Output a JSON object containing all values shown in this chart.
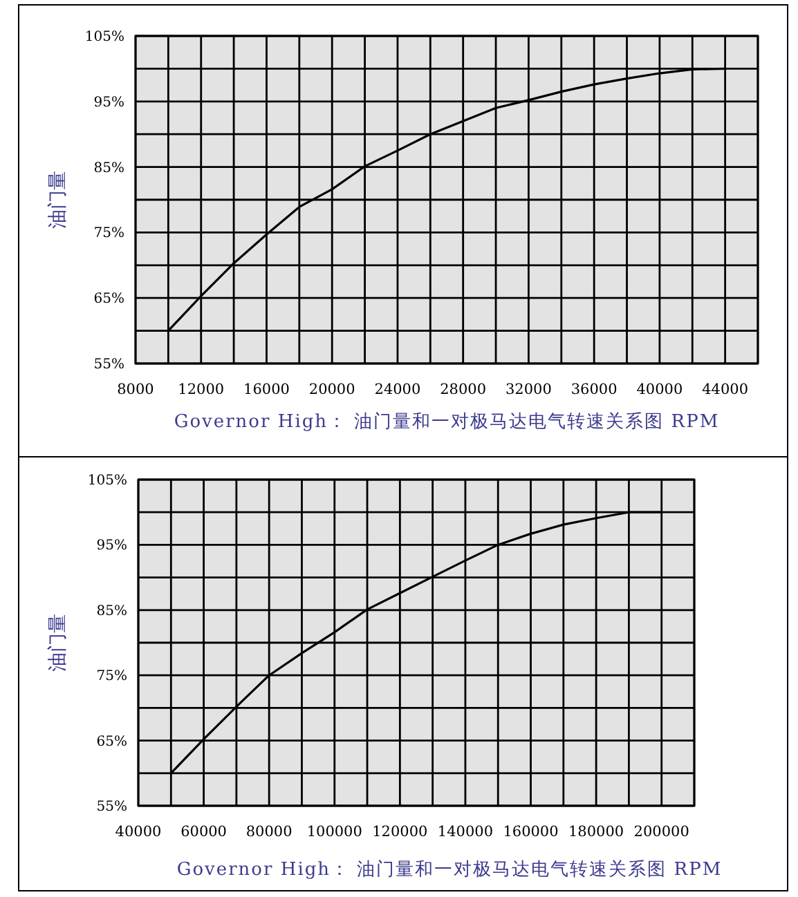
{
  "chart_data": [
    {
      "type": "line",
      "xlabel": "Governor High： 油门量和一对极马达电气转速关系图 RPM",
      "ylabel": "油门量",
      "grid": true,
      "marker": "none",
      "line_style": "solid",
      "xlim": [
        8000,
        46000
      ],
      "ylim": [
        55,
        105
      ],
      "xticks": [
        8000,
        {
          "value": 10000,
          "label": null
        },
        12000,
        {
          "value": 14000,
          "label": null
        },
        16000,
        {
          "value": 18000,
          "label": null
        },
        20000,
        {
          "value": 22000,
          "label": null
        },
        24000,
        {
          "value": 26000,
          "label": null
        },
        28000,
        {
          "value": 30000,
          "label": null
        },
        32000,
        {
          "value": 34000,
          "label": null
        },
        36000,
        {
          "value": 38000,
          "label": null
        },
        40000,
        {
          "value": 42000,
          "label": null
        },
        44000,
        {
          "value": 46000,
          "label": null
        }
      ],
      "yticks": [
        {
          "value": 55,
          "label": "55%"
        },
        {
          "value": 60,
          "label": null
        },
        {
          "value": 65,
          "label": "65%"
        },
        {
          "value": 70,
          "label": null
        },
        {
          "value": 75,
          "label": "75%"
        },
        {
          "value": 80,
          "label": null
        },
        {
          "value": 85,
          "label": "85%"
        },
        {
          "value": 90,
          "label": null
        },
        {
          "value": 95,
          "label": "95%"
        },
        {
          "value": 100,
          "label": null
        },
        {
          "value": 105,
          "label": "105%"
        }
      ],
      "series": [
        {
          "color": "#000000",
          "x": [
            10000,
            12000,
            14000,
            16000,
            18000,
            20000,
            22000,
            24000,
            26000,
            28000,
            30000,
            32000,
            34000,
            36000,
            38000,
            40000,
            42000,
            44000
          ],
          "values": [
            60,
            65.3,
            70.3,
            74.7,
            78.9,
            81.6,
            85.1,
            87.5,
            90,
            92,
            94,
            95.2,
            96.5,
            97.6,
            98.5,
            99.3,
            99.9,
            100
          ]
        }
      ]
    },
    {
      "type": "line",
      "xlabel": "Governor High： 油门量和一对极马达电气转速关系图 RPM",
      "ylabel": "油门量",
      "grid": true,
      "marker": "none",
      "line_style": "solid",
      "xlim": [
        40000,
        210000
      ],
      "ylim": [
        55,
        105
      ],
      "xticks": [
        40000,
        {
          "value": 50000,
          "label": null
        },
        60000,
        {
          "value": 70000,
          "label": null
        },
        80000,
        {
          "value": 90000,
          "label": null
        },
        100000,
        {
          "value": 110000,
          "label": null
        },
        120000,
        {
          "value": 130000,
          "label": null
        },
        140000,
        {
          "value": 150000,
          "label": null
        },
        160000,
        {
          "value": 170000,
          "label": null
        },
        180000,
        {
          "value": 190000,
          "label": null
        },
        200000,
        {
          "value": 210000,
          "label": null
        }
      ],
      "yticks": [
        {
          "value": 55,
          "label": "55%"
        },
        {
          "value": 60,
          "label": null
        },
        {
          "value": 65,
          "label": "65%"
        },
        {
          "value": 70,
          "label": null
        },
        {
          "value": 75,
          "label": "75%"
        },
        {
          "value": 80,
          "label": null
        },
        {
          "value": 85,
          "label": "85%"
        },
        {
          "value": 90,
          "label": null
        },
        {
          "value": 95,
          "label": "95%"
        },
        {
          "value": 100,
          "label": null
        },
        {
          "value": 105,
          "label": "105%"
        }
      ],
      "series": [
        {
          "color": "#000000",
          "x": [
            50000,
            60000,
            70000,
            80000,
            90000,
            100000,
            110000,
            120000,
            130000,
            140000,
            150000,
            160000,
            170000,
            180000,
            190000,
            200000
          ],
          "values": [
            60,
            65.2,
            70.2,
            75,
            78.4,
            81.6,
            85.1,
            87.6,
            90.1,
            92.6,
            95,
            96.7,
            98.1,
            99.1,
            100,
            100
          ]
        }
      ]
    }
  ]
}
